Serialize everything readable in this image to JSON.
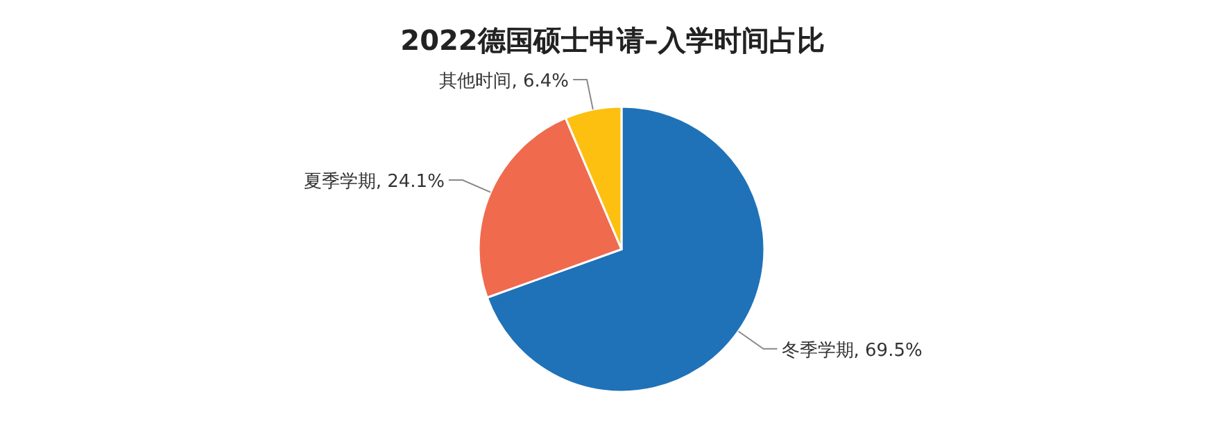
{
  "chart_data": {
    "type": "pie",
    "title": "2022德国硕士申请–入学时间占比",
    "categories": [
      "冬季学期",
      "夏季学期",
      "其他时间"
    ],
    "values": [
      69.5,
      24.1,
      6.4
    ],
    "value_labels": [
      "69.5%",
      "24.1%",
      "6.4%"
    ],
    "colors": [
      "#1f72b8",
      "#f06a4e",
      "#fdc010"
    ]
  }
}
